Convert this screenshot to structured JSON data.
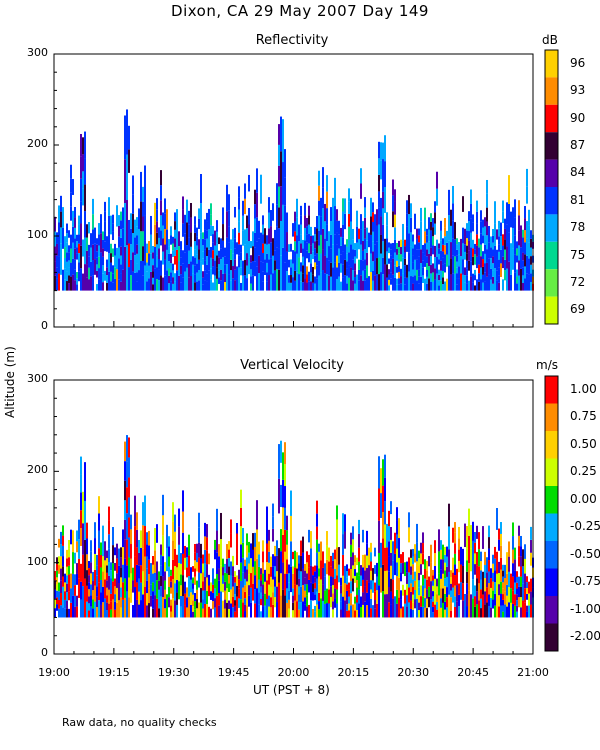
{
  "figure": {
    "title": "Dixon, CA 29 May 2007  Day 149",
    "ylabel": "Altitude (m)",
    "xlabel": "UT (PST + 8)",
    "footnote": "Raw data, no quality checks"
  },
  "chart_data": [
    {
      "type": "heatmap",
      "title": "Reflectivity",
      "xlabel": "UT (PST + 8)",
      "ylabel": "Altitude (m)",
      "x_ticks": [
        "19:00",
        "19:15",
        "19:30",
        "19:45",
        "20:00",
        "20:15",
        "20:30",
        "20:45",
        "21:00"
      ],
      "x_range_minutes": [
        0,
        120
      ],
      "y_ticks": [
        0,
        100,
        200,
        300
      ],
      "ylim": [
        0,
        300
      ],
      "min_altitude_m": 40,
      "typical_top_m": [
        100,
        160
      ],
      "colorbar": {
        "unit": "dB",
        "labels": [
          "96",
          "93",
          "90",
          "87",
          "84",
          "81",
          "78",
          "75",
          "72",
          "69"
        ],
        "colors": [
          "#ffd000",
          "#ff8c00",
          "#ff0000",
          "#330033",
          "#5500aa",
          "#0033ff",
          "#00a8ff",
          "#00d890",
          "#66ee44",
          "#ccff00"
        ]
      },
      "features": [
        {
          "time_min": 18,
          "top_m": 240
        },
        {
          "time_min": 57,
          "top_m": 240
        },
        {
          "time_min": 82,
          "top_m": 220
        },
        {
          "time_min": 7,
          "top_m": 220
        }
      ]
    },
    {
      "type": "heatmap",
      "title": "Vertical Velocity",
      "xlabel": "UT (PST + 8)",
      "ylabel": "Altitude (m)",
      "x_ticks": [
        "19:00",
        "19:15",
        "19:30",
        "19:45",
        "20:00",
        "20:15",
        "20:30",
        "20:45",
        "21:00"
      ],
      "x_range_minutes": [
        0,
        120
      ],
      "y_ticks": [
        0,
        100,
        200,
        300
      ],
      "ylim": [
        0,
        300
      ],
      "min_altitude_m": 40,
      "colorbar": {
        "unit": "m/s",
        "labels": [
          "1.00",
          "0.75",
          "0.50",
          "0.25",
          "0.00",
          "-0.25",
          "-0.50",
          "-0.75",
          "-1.00",
          "-2.00"
        ],
        "colors": [
          "#ff0000",
          "#ff8c00",
          "#ffd000",
          "#ccff00",
          "#00dd00",
          "#00aaff",
          "#0066ff",
          "#0000ff",
          "#5500aa",
          "#330033"
        ]
      },
      "features": [
        {
          "time_min": 18,
          "top_m": 240
        },
        {
          "time_min": 57,
          "top_m": 240
        },
        {
          "time_min": 82,
          "top_m": 220
        },
        {
          "time_min": 7,
          "top_m": 220
        }
      ]
    }
  ]
}
